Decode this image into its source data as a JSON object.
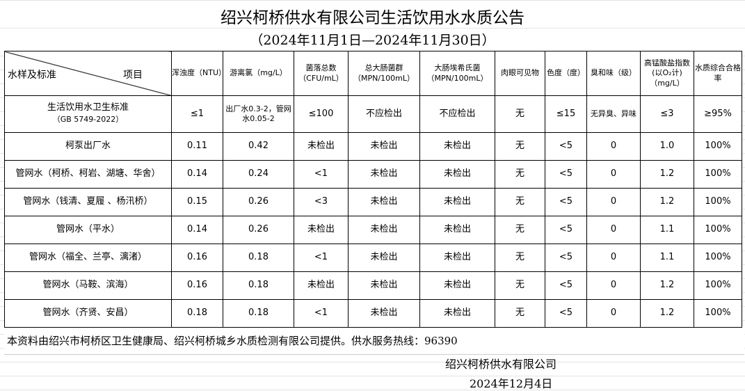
{
  "title": "绍兴柯桥供水有限公司生活饮用水水质公告",
  "subtitle": "（2024年11月1日—2024年11月30日）",
  "header": {
    "corner_left": "水样及标准",
    "corner_right": "项目",
    "columns": [
      "浑浊度（NTU）",
      "游离氯（mg/L）",
      "菌落总数（CFU/mL）",
      "总大肠菌群（MPN/100mL）",
      "大肠埃希氏菌（MPN/100mL）",
      "肉眼可见物",
      "色度（度）",
      "臭和味（级）",
      "高锰酸盐指数(以O₂计)（mg/L）",
      "水质综合合格率"
    ]
  },
  "standard": {
    "name": "生活饮用水卫生标准",
    "code": "（GB 5749-2022）",
    "values": [
      "≤1",
      "出厂水0.3-2，管网水0.05-2",
      "≤100",
      "不应检出",
      "不应检出",
      "无",
      "≤15",
      "无异臭、异味",
      "≤3",
      "≥95%"
    ]
  },
  "rows": [
    {
      "name": "柯泵出厂水",
      "values": [
        "0.11",
        "0.42",
        "未检出",
        "未检出",
        "未检出",
        "无",
        "<5",
        "0",
        "1.0",
        "100%"
      ]
    },
    {
      "name": "管网水（柯桥、柯岩、湖塘、华舍）",
      "values": [
        "0.14",
        "0.24",
        "<1",
        "未检出",
        "未检出",
        "无",
        "<5",
        "0",
        "1.2",
        "100%"
      ]
    },
    {
      "name": "管网水（钱清、夏履 、杨汛桥）",
      "values": [
        "0.15",
        "0.26",
        "<3",
        "未检出",
        "未检出",
        "无",
        "<5",
        "0",
        "1.2",
        "100%"
      ]
    },
    {
      "name": "管网水（平水）",
      "values": [
        "0.14",
        "0.26",
        "未检出",
        "未检出",
        "未检出",
        "无",
        "<5",
        "0",
        "1.1",
        "100%"
      ]
    },
    {
      "name": "管网水（福全、兰亭、漓渚）",
      "values": [
        "0.16",
        "0.18",
        "<1",
        "未检出",
        "未检出",
        "无",
        "<5",
        "0",
        "1.1",
        "100%"
      ]
    },
    {
      "name": "管网水（马鞍、滨海）",
      "values": [
        "0.16",
        "0.18",
        "未检出",
        "未检出",
        "未检出",
        "无",
        "<5",
        "0",
        "1.2",
        "100%"
      ]
    },
    {
      "name": "管网水（齐贤、安昌）",
      "values": [
        "0.18",
        "0.18",
        "<1",
        "未检出",
        "未检出",
        "无",
        "<5",
        "0",
        "1.2",
        "100%"
      ]
    }
  ],
  "footer": {
    "note": "本资料由绍兴市柯桥区卫生健康局、绍兴柯桥城乡水质检测有限公司提供。供水服务热线：96390",
    "company": "绍兴柯桥供水有限公司",
    "date": "2024年12月4日"
  }
}
